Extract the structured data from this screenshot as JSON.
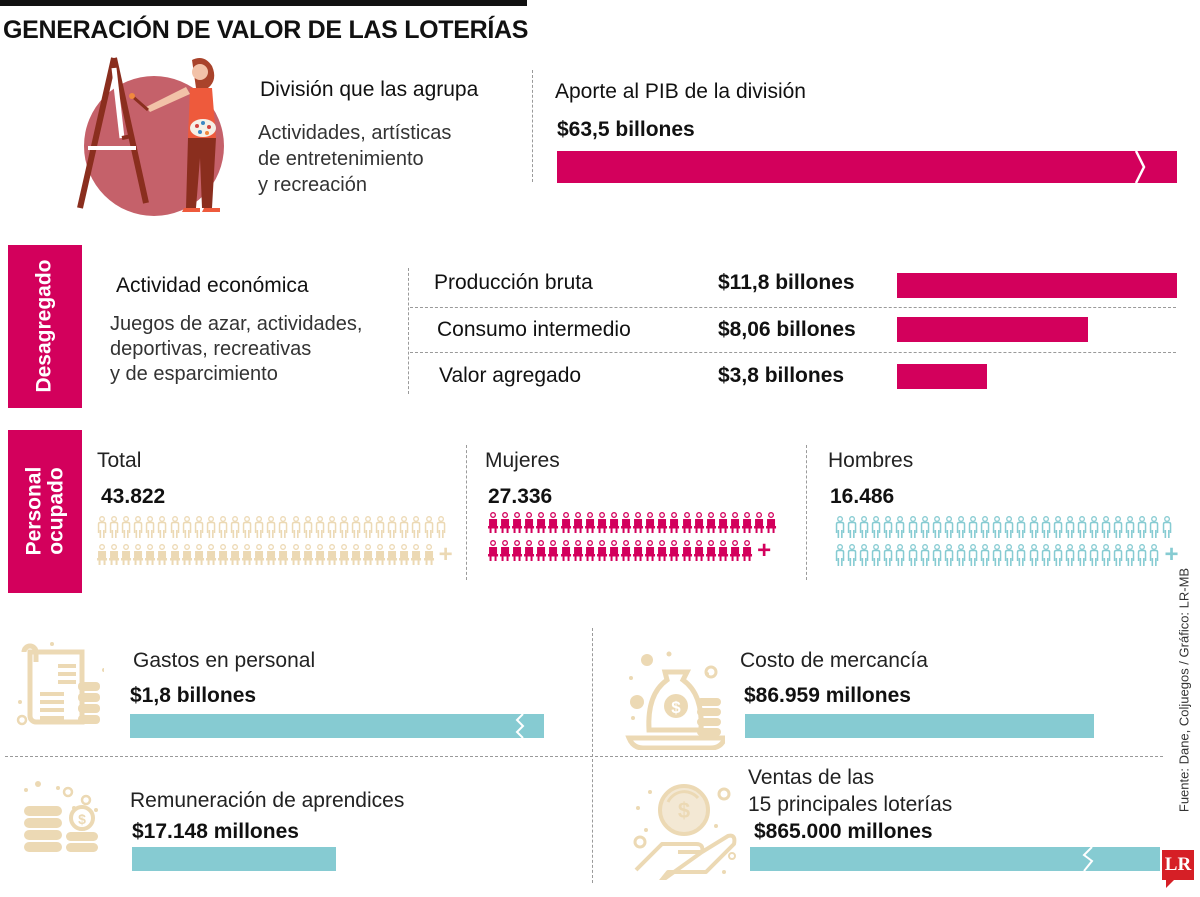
{
  "title": "GENERACIÓN DE VALOR DE LAS LOTERÍAS",
  "division": {
    "label": "División que las agrupa",
    "desc_lines": [
      "Actividades, artísticas",
      "de entretenimiento",
      "y recreación"
    ],
    "pib_label": "Aporte al PIB de la división",
    "pib_value": "$63,5 billones"
  },
  "desagregado": {
    "tab_label": "Desagregado",
    "activity_label": "Actividad económica",
    "activity_lines": [
      "Juegos de azar, actividades,",
      "deportivas, recreativas",
      "y de esparcimiento"
    ],
    "rows": [
      {
        "label": "Producción bruta",
        "value": "$11,8 billones"
      },
      {
        "label": "Consumo intermedio",
        "value": "$8,06 billones"
      },
      {
        "label": "Valor agregado",
        "value": "$3,8 billones"
      }
    ]
  },
  "personal": {
    "tab_line1": "Personal",
    "tab_line2": "ocupado",
    "groups": [
      {
        "label": "Total",
        "value": "43.822",
        "color": "#ecd9b4"
      },
      {
        "label": "Mujeres",
        "value": "27.336",
        "color": "#d3005c"
      },
      {
        "label": "Hombres",
        "value": "16.486",
        "color": "#86cbd2"
      }
    ],
    "plus": "+"
  },
  "costs": [
    {
      "label": "Gastos en personal",
      "value": "$1,8 billones"
    },
    {
      "label": "Costo de mercancía",
      "value": "$86.959 millones"
    },
    {
      "label": "Remuneración de aprendices",
      "value": "$17.148 millones"
    },
    {
      "label_line1": "Ventas de las",
      "label_line2": "15 principales loterías",
      "value": "$865.000 millones"
    }
  ],
  "source": "Fuente: Dane, Coljuegos / Gráfico: LR-MB",
  "logo": "LR",
  "colors": {
    "magenta": "#d3005c",
    "teal": "#86cbd2",
    "beige": "#ecd9b4",
    "illustration_circle": "#c5616a"
  },
  "chart_data": [
    {
      "type": "bar",
      "title": "Aporte al PIB de la división",
      "categories": [
        "Actividades artísticas, de entretenimiento y recreación"
      ],
      "values": [
        63.5
      ],
      "unit": "billones COP",
      "note": "bar truncated (broken-axis marker)"
    },
    {
      "type": "bar",
      "title": "Desagregado — Juegos de azar, actividades deportivas, recreativas y de esparcimiento",
      "categories": [
        "Producción bruta",
        "Consumo intermedio",
        "Valor agregado"
      ],
      "values": [
        11.8,
        8.06,
        3.8
      ],
      "unit": "billones COP",
      "orientation": "horizontal"
    },
    {
      "type": "pictogram",
      "title": "Personal ocupado",
      "categories": [
        "Total",
        "Mujeres",
        "Hombres"
      ],
      "values": [
        43822,
        27336,
        16486
      ]
    },
    {
      "type": "bar",
      "title": "Costos y ventas",
      "categories": [
        "Gastos en personal",
        "Costo de mercancía",
        "Remuneración de aprendices",
        "Ventas de las 15 principales loterías"
      ],
      "values": [
        1800000,
        86959,
        17148,
        865000
      ],
      "unit": "millones COP",
      "note": "Gastos en personal and Ventas bars truncated (broken-axis marker)"
    }
  ]
}
